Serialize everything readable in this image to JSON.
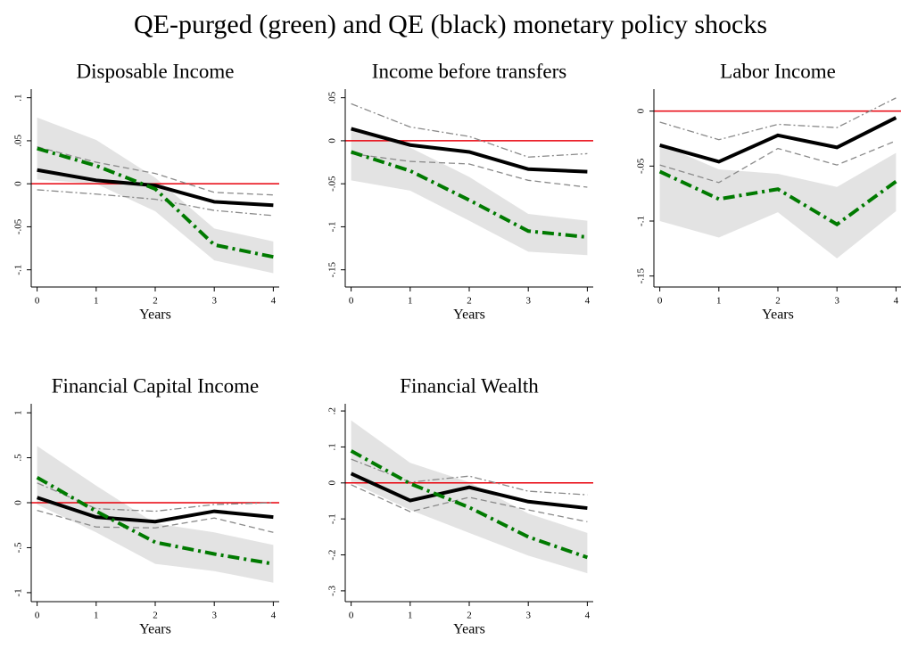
{
  "title": "QE-purged (green) and QE (black) monetary policy shocks",
  "chart_data": [
    {
      "type": "line",
      "title": "Disposable Income",
      "xlabel": "Years",
      "x": [
        0,
        1,
        2,
        3,
        4
      ],
      "xlim": [
        -0.1,
        4.1
      ],
      "xticks": [
        0,
        1,
        2,
        3,
        4
      ],
      "ylim": [
        -0.12,
        0.11
      ],
      "yticks": [
        {
          "value": -0.1,
          "label": "-.1"
        },
        {
          "value": -0.05,
          "label": "-.05"
        },
        0,
        {
          "value": 0.05,
          "label": ".05"
        },
        {
          "value": 0.1,
          "label": ".1"
        }
      ],
      "hline": 0,
      "hline_color": "#e8000b",
      "band": {
        "color": "#e3e3e3",
        "upper": [
          0.077,
          0.051,
          0.007,
          -0.052,
          -0.067
        ],
        "lower": [
          0.005,
          0,
          -0.032,
          -0.089,
          -0.104
        ]
      },
      "series": [
        {
          "color": "#8a8a8a",
          "dash": "7 4",
          "width": 1.3,
          "values": [
            0.043,
            0.025,
            0.012,
            -0.01,
            -0.013
          ]
        },
        {
          "color": "#8a8a8a",
          "dash": "8 3 2 3",
          "width": 1.3,
          "values": [
            -0.007,
            -0.012,
            -0.018,
            -0.031,
            -0.037
          ]
        },
        {
          "color": "#000000",
          "width": 4,
          "values": [
            0.016,
            0.004,
            -0.002,
            -0.021,
            -0.025
          ]
        },
        {
          "color": "#007a00",
          "dash": "13 5 3 5",
          "width": 4,
          "values": [
            0.041,
            0.021,
            -0.006,
            -0.071,
            -0.085
          ]
        }
      ]
    },
    {
      "type": "line",
      "title": "Income before transfers",
      "xlabel": "Years",
      "x": [
        0,
        1,
        2,
        3,
        4
      ],
      "xlim": [
        -0.1,
        4.1
      ],
      "xticks": [
        0,
        1,
        2,
        3,
        4
      ],
      "ylim": [
        -0.17,
        0.06
      ],
      "yticks": [
        {
          "value": -0.15,
          "label": "-.15"
        },
        {
          "value": -0.1,
          "label": "-.1"
        },
        {
          "value": -0.05,
          "label": "-.05"
        },
        0,
        {
          "value": 0.05,
          "label": ".05"
        }
      ],
      "hline": 0,
      "hline_color": "#e8000b",
      "band": {
        "color": "#e3e3e3",
        "upper": [
          0.014,
          -0.008,
          -0.042,
          -0.085,
          -0.093
        ],
        "lower": [
          -0.046,
          -0.058,
          -0.093,
          -0.129,
          -0.133
        ]
      },
      "series": [
        {
          "color": "#8a8a8a",
          "dash": "8 3 2 3",
          "width": 1.3,
          "values": [
            0.043,
            0.016,
            0.005,
            -0.019,
            -0.015
          ]
        },
        {
          "color": "#8a8a8a",
          "dash": "7 4",
          "width": 1.3,
          "values": [
            -0.015,
            -0.024,
            -0.027,
            -0.046,
            -0.054
          ]
        },
        {
          "color": "#000000",
          "width": 4,
          "values": [
            0.014,
            -0.005,
            -0.013,
            -0.033,
            -0.036
          ]
        },
        {
          "color": "#007a00",
          "dash": "13 5 3 5",
          "width": 4,
          "values": [
            -0.013,
            -0.035,
            -0.069,
            -0.105,
            -0.112
          ]
        }
      ]
    },
    {
      "type": "line",
      "title": "Labor Income",
      "xlabel": "Years",
      "x": [
        0,
        1,
        2,
        3,
        4
      ],
      "xlim": [
        -0.1,
        4.1
      ],
      "xticks": [
        0,
        1,
        2,
        3,
        4
      ],
      "ylim": [
        -0.16,
        0.02
      ],
      "yticks": [
        {
          "value": -0.15,
          "label": "-.15"
        },
        {
          "value": -0.1,
          "label": "-.1"
        },
        {
          "value": -0.05,
          "label": "-.05"
        },
        0
      ],
      "hline": 0,
      "hline_color": "#e8000b",
      "band": {
        "color": "#e3e3e3",
        "upper": [
          -0.03,
          -0.053,
          -0.057,
          -0.069,
          -0.038
        ],
        "lower": [
          -0.1,
          -0.115,
          -0.092,
          -0.134,
          -0.091
        ]
      },
      "series": [
        {
          "color": "#8a8a8a",
          "dash": "8 3 2 3",
          "width": 1.3,
          "values": [
            -0.01,
            -0.026,
            -0.012,
            -0.015,
            0.012
          ]
        },
        {
          "color": "#8a8a8a",
          "dash": "7 4",
          "width": 1.3,
          "values": [
            -0.049,
            -0.065,
            -0.034,
            -0.049,
            -0.027
          ]
        },
        {
          "color": "#000000",
          "width": 4,
          "values": [
            -0.031,
            -0.046,
            -0.022,
            -0.033,
            -0.006
          ]
        },
        {
          "color": "#007a00",
          "dash": "13 5 3 5",
          "width": 4,
          "values": [
            -0.055,
            -0.08,
            -0.071,
            -0.103,
            -0.064
          ]
        }
      ]
    },
    {
      "type": "line",
      "title": "Financial Capital Income",
      "xlabel": "Years",
      "x": [
        0,
        1,
        2,
        3,
        4
      ],
      "xlim": [
        -0.1,
        4.1
      ],
      "xticks": [
        0,
        1,
        2,
        3,
        4
      ],
      "ylim": [
        -1.1,
        1.1
      ],
      "yticks": [
        -1,
        {
          "value": -0.5,
          "label": "-.5"
        },
        0,
        {
          "value": 0.5,
          "label": ".5"
        },
        1
      ],
      "hline": 0,
      "hline_color": "#e8000b",
      "band": {
        "color": "#e3e3e3",
        "upper": [
          0.63,
          0.19,
          -0.23,
          -0.33,
          -0.47
        ],
        "lower": [
          -0.02,
          -0.33,
          -0.68,
          -0.76,
          -0.89
        ]
      },
      "series": [
        {
          "color": "#8a8a8a",
          "dash": "8 3 2 3",
          "width": 1.3,
          "values": [
            0.22,
            -0.066,
            -0.095,
            -0.02,
            0
          ]
        },
        {
          "color": "#8a8a8a",
          "dash": "7 4",
          "width": 1.3,
          "values": [
            -0.085,
            -0.27,
            -0.28,
            -0.17,
            -0.33
          ]
        },
        {
          "color": "#000000",
          "width": 4,
          "values": [
            0.057,
            -0.16,
            -0.21,
            -0.095,
            -0.16
          ]
        },
        {
          "color": "#007a00",
          "dash": "13 5 3 5",
          "width": 4,
          "values": [
            0.28,
            -0.095,
            -0.44,
            -0.57,
            -0.68
          ]
        }
      ]
    },
    {
      "type": "line",
      "title": "Financial Wealth",
      "xlabel": "Years",
      "x": [
        0,
        1,
        2,
        3,
        4
      ],
      "xlim": [
        -0.1,
        4.1
      ],
      "xticks": [
        0,
        1,
        2,
        3,
        4
      ],
      "ylim": [
        -0.33,
        0.22
      ],
      "yticks": [
        {
          "value": -0.3,
          "label": "-.3"
        },
        {
          "value": -0.2,
          "label": "-.2"
        },
        {
          "value": -0.1,
          "label": "-.1"
        },
        0,
        {
          "value": 0.1,
          "label": ".1"
        },
        {
          "value": 0.2,
          "label": ".2"
        }
      ],
      "hline": 0,
      "hline_color": "#e8000b",
      "band": {
        "color": "#e3e3e3",
        "upper": [
          0.174,
          0.056,
          0.002,
          -0.085,
          -0.139
        ],
        "lower": [
          0.002,
          -0.075,
          -0.139,
          -0.202,
          -0.251
        ]
      },
      "series": [
        {
          "color": "#8a8a8a",
          "dash": "8 3 2 3",
          "width": 1.3,
          "values": [
            0.066,
            0.002,
            0.019,
            -0.023,
            -0.033
          ]
        },
        {
          "color": "#8a8a8a",
          "dash": "7 4",
          "width": 1.3,
          "values": [
            -0.005,
            -0.08,
            -0.04,
            -0.075,
            -0.108
          ]
        },
        {
          "color": "#000000",
          "width": 4,
          "values": [
            0.026,
            -0.049,
            -0.012,
            -0.052,
            -0.07
          ]
        },
        {
          "color": "#007a00",
          "dash": "13 5 3 5",
          "width": 4,
          "values": [
            0.089,
            -0.002,
            -0.068,
            -0.15,
            -0.207
          ]
        }
      ]
    }
  ]
}
